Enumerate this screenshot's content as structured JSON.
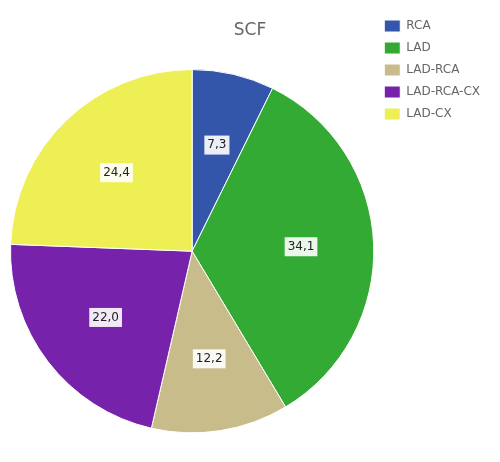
{
  "chart_data": {
    "type": "pie",
    "title": "SCF",
    "categories": [
      "RCA",
      "LAD",
      "LAD-RCA",
      "LAD-RCA-CX",
      "LAD-CX"
    ],
    "values": [
      7.3,
      34.1,
      12.2,
      22.0,
      24.4
    ],
    "value_labels": [
      "7,3",
      "34,1",
      "12,2",
      "22,0",
      "24,4"
    ],
    "colors": [
      "#3355aa",
      "#33aa33",
      "#c8bc8a",
      "#7722aa",
      "#eeee55"
    ],
    "data_labels": true,
    "legend": "right"
  }
}
